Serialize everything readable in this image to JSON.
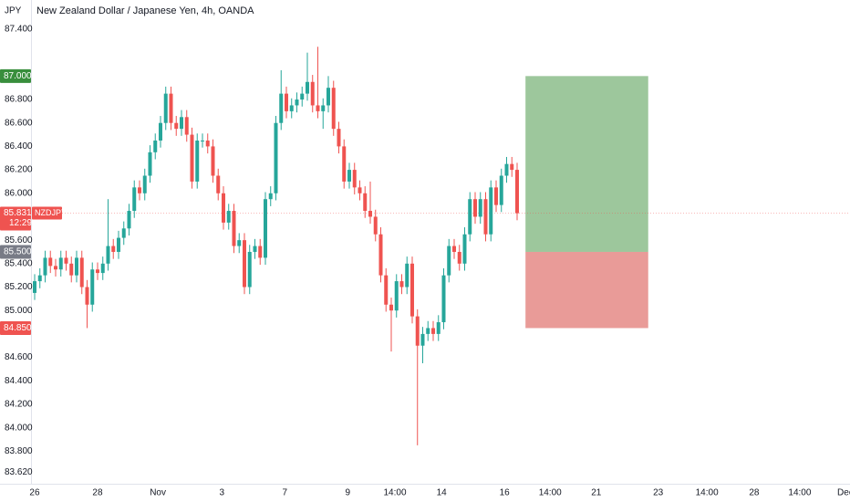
{
  "chart_data": {
    "type": "candlestick",
    "title": "New Zealand Dollar / Japanese Yen, 4h, OANDA",
    "currency": "JPY",
    "symbol": "NZDJPY",
    "up_color": "#26a69a",
    "down_color": "#ef5350",
    "grid": false,
    "open": [
      85.15,
      85.25,
      85.3,
      85.45,
      85.38,
      85.35,
      85.45,
      85.4,
      85.3,
      85.45,
      85.2,
      85.05,
      85.35,
      85.32,
      85.4,
      85.55,
      85.5,
      85.62,
      85.7,
      85.85,
      86.05,
      86.0,
      86.15,
      86.35,
      86.45,
      86.6,
      86.85,
      86.6,
      86.55,
      86.65,
      86.5,
      86.1,
      86.45,
      86.45,
      86.4,
      86.15,
      86.0,
      85.75,
      85.85,
      85.55,
      85.6,
      85.2,
      85.5,
      85.55,
      85.45,
      85.95,
      86.0,
      86.6,
      86.85,
      86.7,
      86.75,
      86.8,
      86.85,
      86.95,
      86.75,
      86.7,
      86.75,
      86.9,
      86.55,
      86.4,
      86.1,
      86.2,
      86.05,
      86.0,
      85.85,
      85.8,
      85.65,
      85.3,
      85.05,
      85.0,
      85.25,
      85.2,
      85.4,
      84.95,
      84.7,
      84.8,
      84.85,
      84.8,
      84.9,
      85.3,
      85.55,
      85.5,
      85.4,
      85.65,
      85.95,
      85.8,
      85.95,
      85.65,
      86.05,
      85.9,
      86.15,
      86.25,
      86.2
    ],
    "high": [
      85.31,
      85.36,
      85.51,
      85.51,
      85.44,
      85.51,
      85.51,
      85.46,
      85.51,
      85.51,
      85.26,
      85.41,
      85.41,
      85.46,
      85.95,
      85.61,
      85.68,
      85.76,
      85.91,
      86.11,
      86.11,
      86.21,
      86.41,
      86.51,
      86.66,
      86.91,
      86.91,
      86.66,
      86.71,
      86.71,
      86.56,
      86.51,
      86.51,
      86.51,
      86.46,
      86.21,
      86.06,
      85.91,
      85.91,
      85.66,
      85.66,
      85.56,
      85.61,
      85.61,
      86.01,
      86.06,
      86.66,
      87.05,
      86.91,
      86.81,
      86.86,
      86.91,
      87.2,
      87.01,
      87.25,
      86.81,
      87.0,
      86.96,
      86.61,
      86.46,
      86.26,
      86.26,
      86.11,
      86.06,
      86.1,
      85.86,
      85.71,
      85.36,
      85.11,
      85.31,
      85.31,
      85.46,
      85.46,
      85.01,
      84.86,
      84.91,
      84.91,
      84.96,
      85.36,
      85.61,
      85.61,
      85.56,
      85.71,
      86.01,
      86.01,
      86.01,
      86.01,
      86.11,
      86.11,
      86.21,
      86.31,
      86.31,
      86.26
    ],
    "low": [
      85.09,
      85.19,
      85.24,
      85.32,
      85.29,
      85.29,
      85.34,
      85.24,
      85.24,
      85.14,
      84.85,
      84.99,
      85.26,
      85.26,
      85.34,
      85.44,
      85.44,
      85.56,
      85.64,
      85.79,
      85.94,
      85.94,
      86.09,
      86.29,
      86.39,
      86.54,
      86.54,
      86.49,
      86.49,
      86.44,
      86.04,
      86.04,
      86.39,
      86.34,
      86.09,
      85.94,
      85.69,
      85.69,
      85.49,
      85.49,
      85.14,
      85.14,
      85.44,
      85.39,
      85.39,
      85.89,
      85.94,
      86.54,
      86.64,
      86.64,
      86.69,
      86.74,
      86.79,
      86.69,
      86.64,
      86.55,
      86.69,
      86.49,
      86.34,
      86.04,
      86.04,
      85.99,
      85.94,
      85.79,
      85.74,
      85.59,
      85.24,
      84.99,
      84.65,
      84.94,
      85.14,
      85.14,
      84.89,
      83.85,
      84.55,
      84.74,
      84.74,
      84.74,
      84.84,
      85.24,
      85.44,
      85.34,
      85.34,
      85.59,
      85.74,
      85.74,
      85.59,
      85.59,
      85.84,
      85.84,
      86.09,
      86.14,
      85.77
    ],
    "close": [
      85.25,
      85.3,
      85.45,
      85.38,
      85.35,
      85.45,
      85.4,
      85.3,
      85.45,
      85.2,
      85.05,
      85.35,
      85.32,
      85.4,
      85.55,
      85.5,
      85.62,
      85.7,
      85.85,
      86.05,
      86.0,
      86.15,
      86.35,
      86.45,
      86.6,
      86.85,
      86.6,
      86.55,
      86.65,
      86.5,
      86.1,
      86.45,
      86.45,
      86.4,
      86.15,
      86.0,
      85.75,
      85.85,
      85.55,
      85.6,
      85.2,
      85.5,
      85.55,
      85.45,
      85.95,
      86.0,
      86.6,
      86.85,
      86.7,
      86.75,
      86.8,
      86.85,
      86.95,
      86.75,
      86.7,
      86.75,
      86.9,
      86.55,
      86.4,
      86.1,
      86.2,
      86.05,
      86.0,
      85.85,
      85.8,
      85.65,
      85.3,
      85.05,
      85.0,
      85.25,
      85.2,
      85.4,
      84.95,
      84.7,
      84.8,
      84.85,
      84.8,
      84.9,
      85.3,
      85.55,
      85.5,
      85.4,
      85.65,
      85.95,
      85.8,
      85.95,
      85.65,
      86.05,
      85.9,
      86.15,
      86.25,
      86.2,
      85.83
    ],
    "xlim": [
      -0.52,
      155.48
    ],
    "xticks": [
      {
        "value": 0,
        "label": "26"
      },
      {
        "value": 12,
        "label": "28"
      },
      {
        "value": 23.5,
        "label": "Nov"
      },
      {
        "value": 35.7,
        "label": "3"
      },
      {
        "value": 47.7,
        "label": "7"
      },
      {
        "value": 59.7,
        "label": "9"
      },
      {
        "value": 68.7,
        "label": "14:00"
      },
      {
        "value": 77.6,
        "label": "14"
      },
      {
        "value": 89.6,
        "label": "16"
      },
      {
        "value": 98.3,
        "label": "14:00"
      },
      {
        "value": 107.1,
        "label": "21"
      },
      {
        "value": 118.9,
        "label": "23"
      },
      {
        "value": 128.2,
        "label": "14:00"
      },
      {
        "value": 137.2,
        "label": "28"
      },
      {
        "value": 145.9,
        "label": "14:00"
      },
      {
        "value": 154.6,
        "label": "Dec"
      }
    ],
    "ylim": [
      83.522,
      87.649
    ],
    "yticks": [
      {
        "value": 87.4,
        "label": "87.400"
      },
      {
        "value": 86.8,
        "label": "86.800"
      },
      {
        "value": 86.6,
        "label": "86.600"
      },
      {
        "value": 86.4,
        "label": "86.400"
      },
      {
        "value": 86.2,
        "label": "86.200"
      },
      {
        "value": 86.0,
        "label": "86.000"
      },
      {
        "value": 85.6,
        "label": "85.600"
      },
      {
        "value": 85.4,
        "label": "85.400"
      },
      {
        "value": 85.2,
        "label": "85.200"
      },
      {
        "value": 85.0,
        "label": "85.000"
      },
      {
        "value": 84.6,
        "label": "84.600"
      },
      {
        "value": 84.4,
        "label": "84.400"
      },
      {
        "value": 84.2,
        "label": "84.200"
      },
      {
        "value": 84.0,
        "label": "84.000"
      },
      {
        "value": 83.8,
        "label": "83.800"
      },
      {
        "value": 83.62,
        "label": "83.620"
      }
    ],
    "last_price": {
      "value": 85.831,
      "label": "85.831",
      "countdown": "12:29",
      "color": "#ef5350"
    },
    "position": {
      "x_range": [
        93.6,
        117
      ],
      "take_profit": {
        "value": 87.0,
        "label": "87.000",
        "color": "#388e3c"
      },
      "entry": {
        "value": 85.5,
        "label": "85.500",
        "color": "#787b86"
      },
      "stop_loss": {
        "value": 84.85,
        "label": "84.850",
        "color": "#ef5350"
      },
      "profit_fill": "#9dc79c",
      "loss_fill": "#e99b98"
    }
  }
}
